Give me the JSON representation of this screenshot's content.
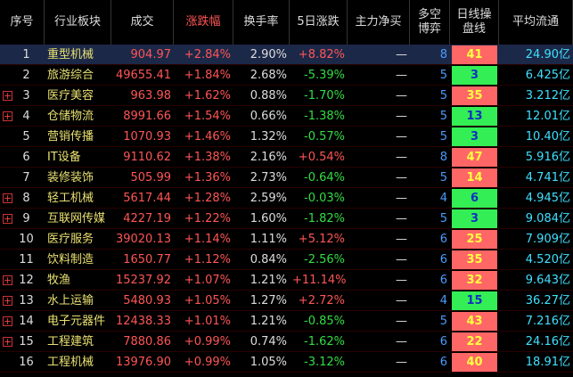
{
  "table": {
    "columns": [
      "序号",
      "行业板块",
      "成交",
      "涨跌幅",
      "换手率",
      "5日涨跌",
      "主力净买",
      "多空博弈",
      "日线操盘线",
      "平均流通"
    ],
    "rows": [
      [
        "1",
        "重型机械",
        "904.97",
        "+2.84%",
        "2.90%",
        "+8.82%",
        "—",
        "8",
        "41",
        "24.90亿"
      ],
      [
        "2",
        "旅游综合",
        "49655.41",
        "+1.84%",
        "2.68%",
        "-5.39%",
        "—",
        "5",
        "3",
        "6.425亿"
      ],
      [
        "3",
        "医疗美容",
        "963.98",
        "+1.62%",
        "0.88%",
        "-1.70%",
        "—",
        "5",
        "35",
        "3.212亿"
      ],
      [
        "4",
        "仓储物流",
        "8991.66",
        "+1.54%",
        "0.66%",
        "-1.38%",
        "—",
        "5",
        "13",
        "12.01亿"
      ],
      [
        "5",
        "营销传播",
        "1070.93",
        "+1.46%",
        "1.32%",
        "-0.57%",
        "—",
        "5",
        "3",
        "10.40亿"
      ],
      [
        "6",
        "IT设备",
        "9110.62",
        "+1.38%",
        "2.16%",
        "+0.54%",
        "—",
        "8",
        "47",
        "5.916亿"
      ],
      [
        "7",
        "装修装饰",
        "505.99",
        "+1.36%",
        "2.73%",
        "-0.64%",
        "—",
        "5",
        "14",
        "4.741亿"
      ],
      [
        "8",
        "轻工机械",
        "5617.44",
        "+1.28%",
        "2.59%",
        "-0.03%",
        "—",
        "4",
        "6",
        "4.945亿"
      ],
      [
        "9",
        "互联网传媒",
        "4227.19",
        "+1.22%",
        "1.60%",
        "-1.82%",
        "—",
        "5",
        "3",
        "9.084亿"
      ],
      [
        "10",
        "医疗服务",
        "39020.13",
        "+1.14%",
        "1.11%",
        "+5.12%",
        "—",
        "6",
        "25",
        "7.909亿"
      ],
      [
        "11",
        "饮料制造",
        "1650.77",
        "+1.12%",
        "0.84%",
        "-2.56%",
        "—",
        "6",
        "35",
        "4.520亿"
      ],
      [
        "12",
        "牧渔",
        "15237.92",
        "+1.07%",
        "1.21%",
        "+11.14%",
        "—",
        "6",
        "32",
        "9.643亿"
      ],
      [
        "13",
        "水上运输",
        "5480.93",
        "+1.05%",
        "1.27%",
        "+2.72%",
        "—",
        "4",
        "15",
        "36.27亿"
      ],
      [
        "14",
        "电子元器件",
        "12438.33",
        "+1.01%",
        "1.21%",
        "-0.85%",
        "—",
        "5",
        "43",
        "7.216亿"
      ],
      [
        "15",
        "工程建筑",
        "7880.86",
        "+0.99%",
        "0.74%",
        "-1.62%",
        "—",
        "6",
        "22",
        "24.16亿"
      ],
      [
        "16",
        "工程机械",
        "13976.90",
        "+0.99%",
        "1.05%",
        "-3.12%",
        "—",
        "6",
        "40",
        "18.91亿"
      ]
    ],
    "signal_colors": [
      "#ff6666",
      "#33ee55",
      "#ff6666",
      "#33ee55",
      "#33ee55",
      "#ff6666",
      "#ff6666",
      "#33ee55",
      "#33ee55",
      "#ff6666",
      "#ff6666",
      "#ff6666",
      "#33ee55",
      "#ff6666",
      "#ff6666",
      "#ff6666"
    ]
  }
}
